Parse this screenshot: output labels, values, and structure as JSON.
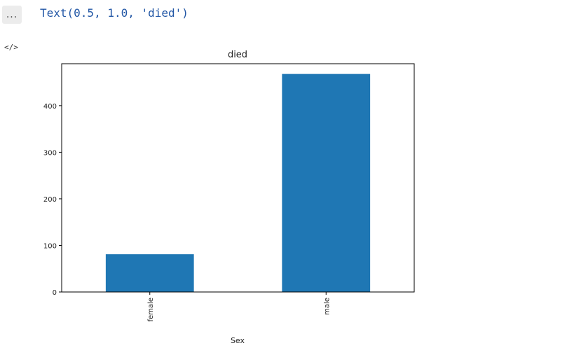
{
  "cell": {
    "more_label": "...",
    "output_text": "Text(0.5, 1.0, 'died')",
    "code_icon": "</>"
  },
  "chart_data": {
    "type": "bar",
    "title": "died",
    "xlabel": "Sex",
    "ylabel": "",
    "categories": [
      "female",
      "male"
    ],
    "values": [
      81,
      468
    ],
    "ylim": [
      0,
      490
    ],
    "yticks": [
      0,
      100,
      200,
      300,
      400
    ],
    "color": "#1f77b4",
    "grid": false
  }
}
